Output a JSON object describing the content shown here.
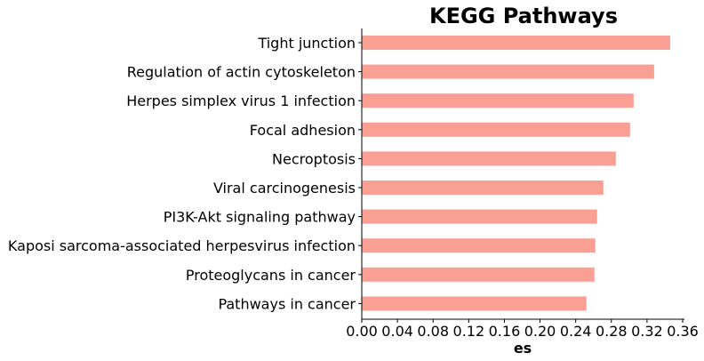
{
  "chart_data": {
    "type": "bar",
    "orientation": "horizontal",
    "title": "KEGG Pathways",
    "xlabel": "es",
    "ylabel": "",
    "xlim": [
      0.0,
      0.36
    ],
    "xticks": [
      "0.00",
      "0.04",
      "0.08",
      "0.12",
      "0.16",
      "0.20",
      "0.24",
      "0.28",
      "0.32",
      "0.36"
    ],
    "grid": false,
    "bar_color": "#fa9f94",
    "categories": [
      "Tight junction",
      "Regulation of actin cytoskeleton",
      "Herpes simplex virus 1 infection",
      "Focal adhesion",
      "Necroptosis",
      "Viral carcinogenesis",
      "PI3K-Akt signaling pathway",
      "Kaposi sarcoma-associated herpesvirus infection",
      "Proteoglycans in cancer",
      "Pathways in cancer"
    ],
    "values": [
      0.346,
      0.328,
      0.305,
      0.301,
      0.285,
      0.271,
      0.264,
      0.262,
      0.261,
      0.252
    ]
  }
}
